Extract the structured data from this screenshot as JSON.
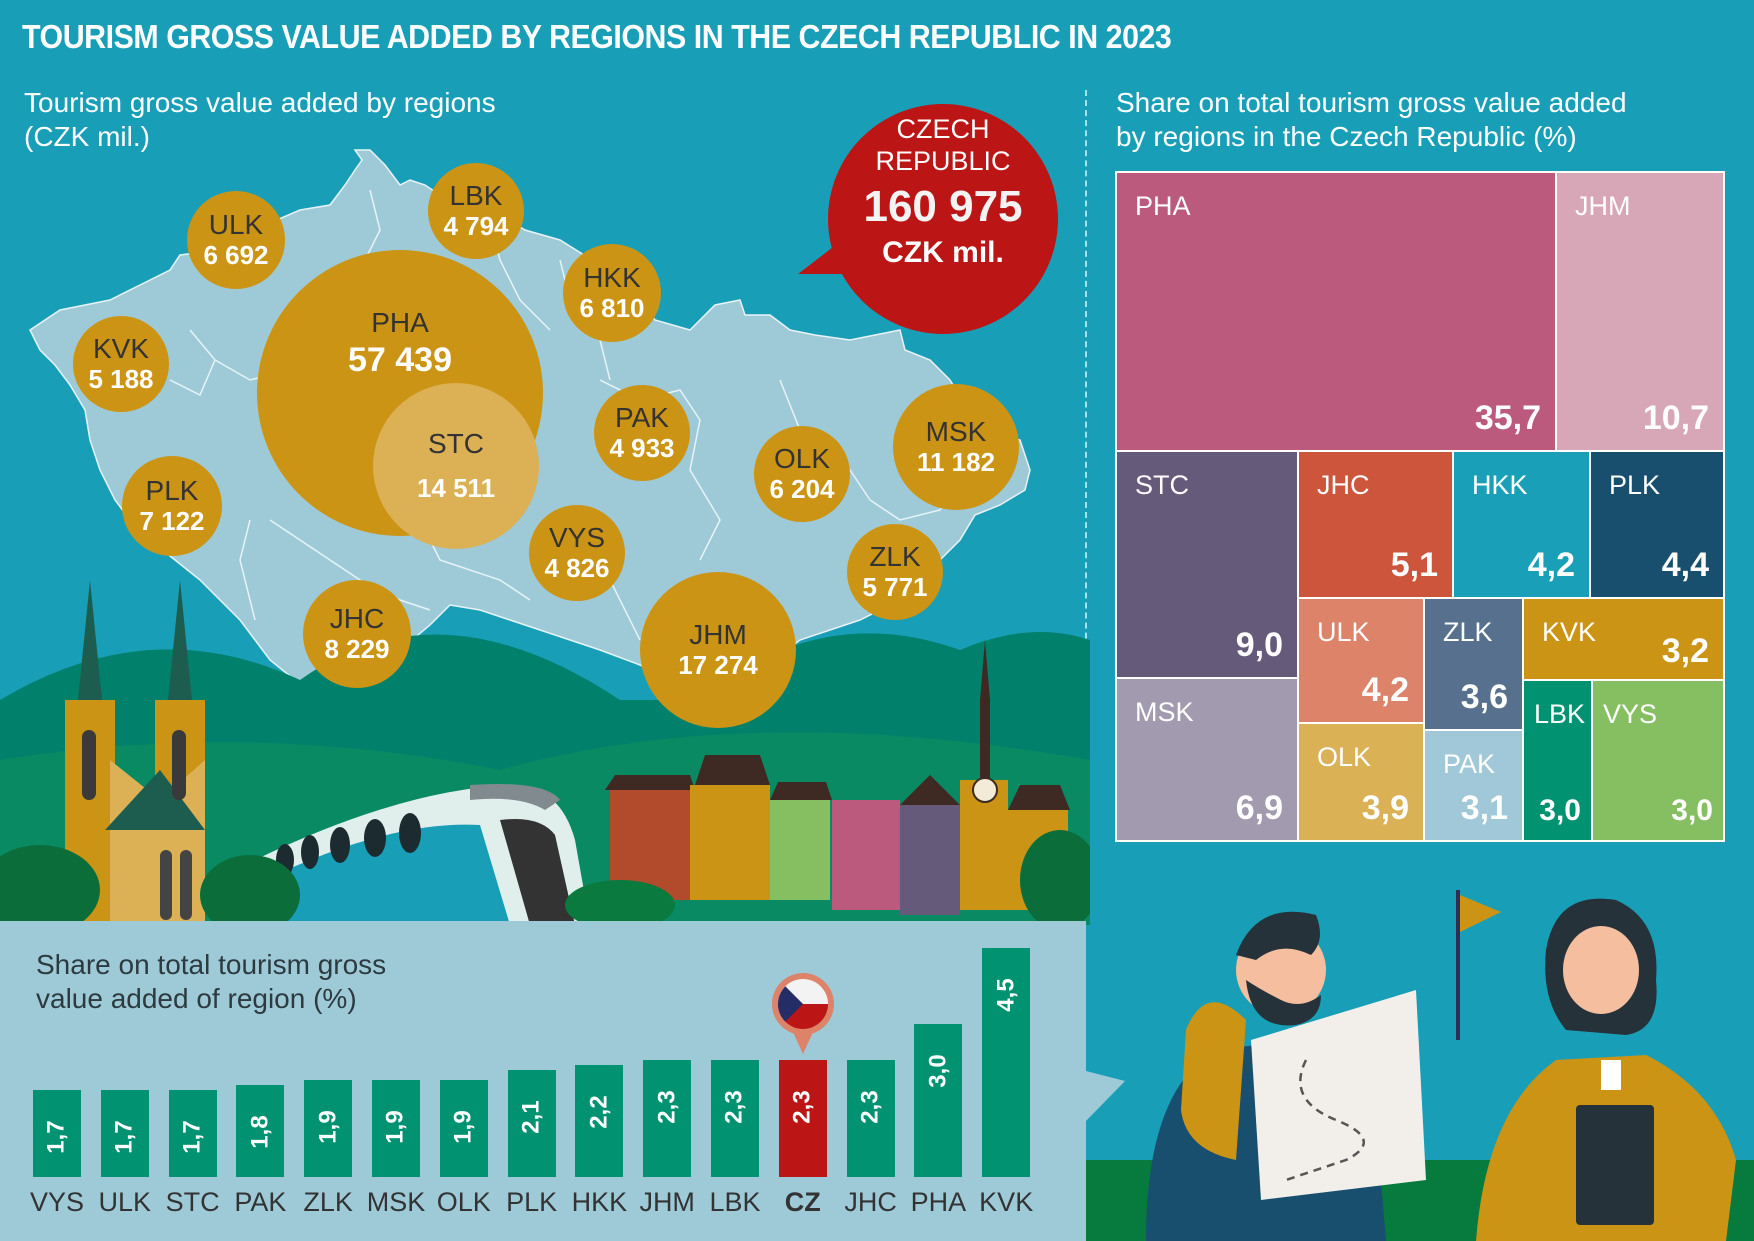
{
  "title": "TOURISM GROSS VALUE ADDED BY REGIONS IN THE CZECH REPUBLIC IN 2023",
  "map": {
    "subtitle_line1": "Tourism gross value added by regions",
    "subtitle_line2": "(CZK mil.)",
    "total": {
      "line1": "CZECH",
      "line2": "REPUBLIC",
      "value": "160 975",
      "unit": "CZK mil."
    }
  },
  "treemap_subtitle_line1": "Share on total tourism gross value added",
  "treemap_subtitle_line2": "by regions in the Czech Republic (%)",
  "bar_subtitle_line1": "Share on total tourism gross",
  "bar_subtitle_line2": "value added of region (%)",
  "colors": {
    "background": "#189fb7",
    "bubble": "#cc9414",
    "bubble_stc": "#dcb055",
    "map_fill": "#9ecad8",
    "callout": "#bc1515",
    "bar": "#009271",
    "bar_cz": "#bc1515",
    "panel": "#9ecad8"
  },
  "chart_data": [
    {
      "type": "bubble-map",
      "title": "Tourism gross value added by regions (CZK mil.)",
      "unit": "CZK mil.",
      "total": {
        "label": "CZECH REPUBLIC",
        "value": 160975,
        "display": "160 975"
      },
      "regions": [
        {
          "code": "PHA",
          "value": 57439,
          "display": "57 439"
        },
        {
          "code": "STC",
          "value": 14511,
          "display": "14 511"
        },
        {
          "code": "JHC",
          "value": 8229,
          "display": "8 229"
        },
        {
          "code": "PLK",
          "value": 7122,
          "display": "7 122"
        },
        {
          "code": "KVK",
          "value": 5188,
          "display": "5 188"
        },
        {
          "code": "ULK",
          "value": 6692,
          "display": "6 692"
        },
        {
          "code": "LBK",
          "value": 4794,
          "display": "4 794"
        },
        {
          "code": "HKK",
          "value": 6810,
          "display": "6 810"
        },
        {
          "code": "PAK",
          "value": 4933,
          "display": "4 933"
        },
        {
          "code": "VYS",
          "value": 4826,
          "display": "4 826"
        },
        {
          "code": "JHM",
          "value": 17274,
          "display": "17 274"
        },
        {
          "code": "OLK",
          "value": 6204,
          "display": "6 204"
        },
        {
          "code": "ZLK",
          "value": 5771,
          "display": "5 771"
        },
        {
          "code": "MSK",
          "value": 11182,
          "display": "11 182"
        }
      ]
    },
    {
      "type": "treemap",
      "title": "Share on total tourism gross value added by regions in the Czech Republic (%)",
      "unit": "%",
      "items": [
        {
          "code": "PHA",
          "value": 35.7,
          "display": "35,7",
          "color": "#bb5a7d"
        },
        {
          "code": "JHM",
          "value": 10.7,
          "display": "10,7",
          "color": "#d8a7b7"
        },
        {
          "code": "STC",
          "value": 9.0,
          "display": "9,0",
          "color": "#665a7a"
        },
        {
          "code": "MSK",
          "value": 6.9,
          "display": "6,9",
          "color": "#a29aae"
        },
        {
          "code": "JHC",
          "value": 5.1,
          "display": "5,1",
          "color": "#cd553b"
        },
        {
          "code": "HKK",
          "value": 4.2,
          "display": "4,2",
          "color": "#19a0b8"
        },
        {
          "code": "PLK",
          "value": 4.4,
          "display": "4,4",
          "color": "#184f6e"
        },
        {
          "code": "ULK",
          "value": 4.2,
          "display": "4,2",
          "color": "#dc836a"
        },
        {
          "code": "OLK",
          "value": 3.9,
          "display": "3,9",
          "color": "#dbb156"
        },
        {
          "code": "ZLK",
          "value": 3.6,
          "display": "3,6",
          "color": "#56708d"
        },
        {
          "code": "PAK",
          "value": 3.1,
          "display": "3,1",
          "color": "#a0c8d8"
        },
        {
          "code": "KVK",
          "value": 3.2,
          "display": "3,2",
          "color": "#cc9414"
        },
        {
          "code": "LBK",
          "value": 3.0,
          "display": "3,0",
          "color": "#009271"
        },
        {
          "code": "VYS",
          "value": 3.0,
          "display": "3,0",
          "color": "#86bf61"
        }
      ]
    },
    {
      "type": "bar",
      "title": "Share on total tourism gross value added of region (%)",
      "xlabel": "",
      "ylabel": "%",
      "ylim": [
        0,
        4.5
      ],
      "categories": [
        "VYS",
        "ULK",
        "STC",
        "PAK",
        "ZLK",
        "MSK",
        "OLK",
        "PLK",
        "HKK",
        "JHM",
        "LBK",
        "CZ",
        "JHC",
        "PHA",
        "KVK"
      ],
      "values": [
        1.7,
        1.7,
        1.7,
        1.8,
        1.9,
        1.9,
        1.9,
        2.1,
        2.2,
        2.3,
        2.3,
        2.3,
        2.3,
        3.0,
        4.5
      ],
      "labels": [
        "1,7",
        "1,7",
        "1,7",
        "1,8",
        "1,9",
        "1,9",
        "1,9",
        "2,1",
        "2,2",
        "2,3",
        "2,3",
        "2,3",
        "2,3",
        "3,0",
        "4,5"
      ],
      "highlight": "CZ",
      "highlight_marker": "czech-flag-pin"
    }
  ]
}
